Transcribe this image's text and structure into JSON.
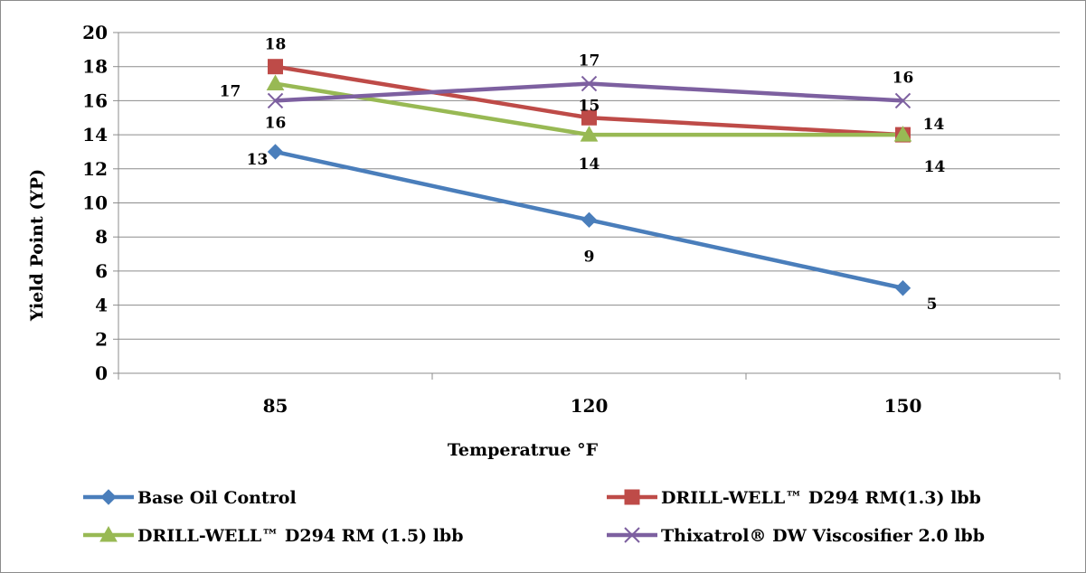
{
  "chart_data": {
    "type": "line",
    "categories": [
      "85",
      "120",
      "150"
    ],
    "xlabel": "Temperatrue  °F",
    "ylabel": "Yield Point (YP)",
    "ylim": [
      0,
      20
    ],
    "ytick_step": 2,
    "grid": true,
    "legend_position": "bottom",
    "series": [
      {
        "name": "Base Oil Control",
        "values": [
          13,
          9,
          5
        ],
        "color": "#4a7ebb",
        "marker": "diamond",
        "labels": [
          "13",
          "9",
          "5"
        ]
      },
      {
        "name": "DRILL-WELL™ D294 RM(1.3) lbb",
        "values": [
          18,
          15,
          14
        ],
        "color": "#be4b48",
        "marker": "square",
        "labels": [
          "18",
          "15",
          "14"
        ]
      },
      {
        "name": "DRILL-WELL™ D294 RM (1.5) lbb",
        "values": [
          17,
          14,
          14
        ],
        "color": "#98b954",
        "marker": "triangle",
        "labels": [
          "17",
          "14",
          "14"
        ]
      },
      {
        "name": "Thixatrol® DW Viscosifier 2.0 lbb",
        "values": [
          16,
          17,
          16
        ],
        "color": "#7d60a0",
        "marker": "x",
        "labels": [
          "16",
          "17",
          "16"
        ]
      }
    ]
  }
}
